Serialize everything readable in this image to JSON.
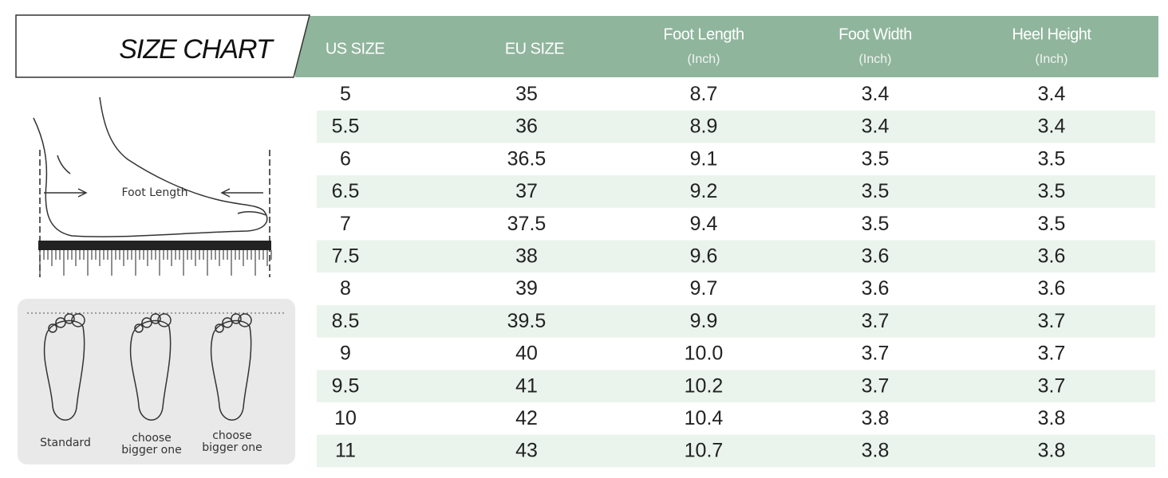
{
  "header": {
    "title": "SIZE CHART"
  },
  "table": {
    "columns": [
      {
        "label": "US SIZE"
      },
      {
        "label": "EU SIZE"
      },
      {
        "label": "Foot Length",
        "unit": "(Inch)"
      },
      {
        "label": "Foot Width",
        "unit": "(Inch)"
      },
      {
        "label": "Heel Height",
        "unit": "(Inch)"
      }
    ],
    "rows": [
      [
        "5",
        "35",
        "8.7",
        "3.4",
        "3.4"
      ],
      [
        "5.5",
        "36",
        "8.9",
        "3.4",
        "3.4"
      ],
      [
        "6",
        "36.5",
        "9.1",
        "3.5",
        "3.5"
      ],
      [
        "6.5",
        "37",
        "9.2",
        "3.5",
        "3.5"
      ],
      [
        "7",
        "37.5",
        "9.4",
        "3.5",
        "3.5"
      ],
      [
        "7.5",
        "38",
        "9.6",
        "3.6",
        "3.6"
      ],
      [
        "8",
        "39",
        "9.7",
        "3.6",
        "3.6"
      ],
      [
        "8.5",
        "39.5",
        "9.9",
        "3.7",
        "3.7"
      ],
      [
        "9",
        "40",
        "10.0",
        "3.7",
        "3.7"
      ],
      [
        "9.5",
        "41",
        "10.2",
        "3.7",
        "3.7"
      ],
      [
        "10",
        "42",
        "10.4",
        "3.8",
        "3.8"
      ],
      [
        "11",
        "43",
        "10.7",
        "3.8",
        "3.8"
      ]
    ]
  },
  "illustration": {
    "measure_label": "Foot Length",
    "fit_labels": [
      [
        "Standard"
      ],
      [
        "choose",
        "bigger one"
      ],
      [
        "choose",
        "bigger one"
      ]
    ]
  }
}
